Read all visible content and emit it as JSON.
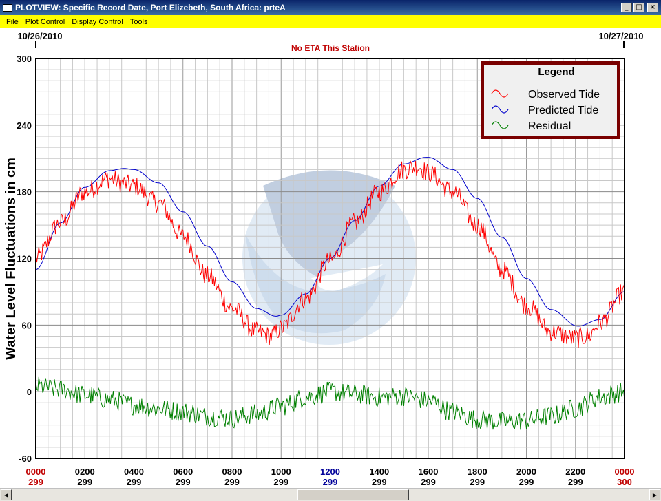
{
  "window": {
    "title": "PLOTVIEW: Specific Record Date, Port Elizebeth, South Africa: prteA",
    "buttons": {
      "minimize": "_",
      "maximize": "□",
      "close": "×"
    }
  },
  "menu": [
    "File",
    "Plot Control",
    "Display Control",
    "Tools"
  ],
  "plot": {
    "date_left": "10/26/2010",
    "date_right": "10/27/2010",
    "status_text": "No ETA This Station",
    "y_axis_label": "Water Level Fluctuations in cm",
    "y_ticks": [
      "300",
      "240",
      "180",
      "120",
      "60",
      "0",
      "-60"
    ],
    "x_ticks": [
      "0000",
      "0200",
      "0400",
      "0600",
      "0800",
      "1000",
      "1200",
      "1400",
      "1600",
      "1800",
      "2000",
      "2200",
      "0000"
    ],
    "x_sub": [
      "299",
      "299",
      "299",
      "299",
      "299",
      "299",
      "299",
      "299",
      "299",
      "299",
      "299",
      "299",
      "300"
    ],
    "legend": {
      "title": "Legend",
      "items": [
        {
          "label": "Observed Tide",
          "color": "#ff0000"
        },
        {
          "label": "Predicted Tide",
          "color": "#0000cc"
        },
        {
          "label": "Residual",
          "color": "#008000"
        }
      ]
    }
  },
  "chart_data": {
    "type": "line",
    "x_unit": "hour",
    "xlim": [
      0,
      24
    ],
    "ylim": [
      -60,
      300
    ],
    "y_ticks": [
      300,
      240,
      180,
      120,
      60,
      0,
      -60
    ],
    "grid": true,
    "legend_position": "top-right",
    "series": [
      {
        "name": "Predicted Tide",
        "color": "#0000cc",
        "points": [
          [
            0,
            110
          ],
          [
            1,
            152
          ],
          [
            2,
            184
          ],
          [
            3,
            199
          ],
          [
            3.6,
            201
          ],
          [
            4,
            200
          ],
          [
            5,
            188
          ],
          [
            6,
            162
          ],
          [
            7,
            131
          ],
          [
            8,
            99
          ],
          [
            9,
            75
          ],
          [
            9.8,
            68
          ],
          [
            10,
            69
          ],
          [
            11,
            88
          ],
          [
            12,
            120
          ],
          [
            13,
            154
          ],
          [
            14,
            185
          ],
          [
            15,
            205
          ],
          [
            15.9,
            211
          ],
          [
            16,
            211
          ],
          [
            17,
            200
          ],
          [
            18,
            174
          ],
          [
            19,
            139
          ],
          [
            20,
            102
          ],
          [
            21,
            74
          ],
          [
            22.1,
            59
          ],
          [
            23,
            65
          ],
          [
            24,
            90
          ]
        ]
      },
      {
        "name": "Observed Tide",
        "color": "#ff0000",
        "points": [
          [
            0,
            120
          ],
          [
            1,
            152
          ],
          [
            2,
            180
          ],
          [
            3,
            192
          ],
          [
            3.5,
            188
          ],
          [
            4,
            185
          ],
          [
            5,
            170
          ],
          [
            6,
            140
          ],
          [
            7,
            104
          ],
          [
            8,
            75
          ],
          [
            9,
            54
          ],
          [
            9.6,
            50
          ],
          [
            10,
            57
          ],
          [
            11,
            84
          ],
          [
            12,
            118
          ],
          [
            13,
            152
          ],
          [
            14,
            180
          ],
          [
            15,
            200
          ],
          [
            15.6,
            203
          ],
          [
            16,
            197
          ],
          [
            17,
            180
          ],
          [
            18,
            150
          ],
          [
            19,
            110
          ],
          [
            20,
            78
          ],
          [
            21,
            54
          ],
          [
            22,
            48
          ],
          [
            22.5,
            50
          ],
          [
            23,
            62
          ],
          [
            24,
            90
          ]
        ]
      },
      {
        "name": "Residual",
        "color": "#008000",
        "points": [
          [
            0,
            5
          ],
          [
            1,
            2
          ],
          [
            2,
            -3
          ],
          [
            3,
            -7
          ],
          [
            4,
            -12
          ],
          [
            5,
            -15
          ],
          [
            6,
            -18
          ],
          [
            7,
            -22
          ],
          [
            8,
            -24
          ],
          [
            9,
            -20
          ],
          [
            10,
            -13
          ],
          [
            11,
            -5
          ],
          [
            12,
            0
          ],
          [
            13,
            -2
          ],
          [
            14,
            -5
          ],
          [
            15,
            -4
          ],
          [
            16,
            -8
          ],
          [
            17,
            -18
          ],
          [
            18,
            -25
          ],
          [
            19,
            -27
          ],
          [
            20,
            -26
          ],
          [
            21,
            -22
          ],
          [
            22,
            -15
          ],
          [
            23,
            -5
          ],
          [
            24,
            0
          ]
        ]
      }
    ]
  }
}
